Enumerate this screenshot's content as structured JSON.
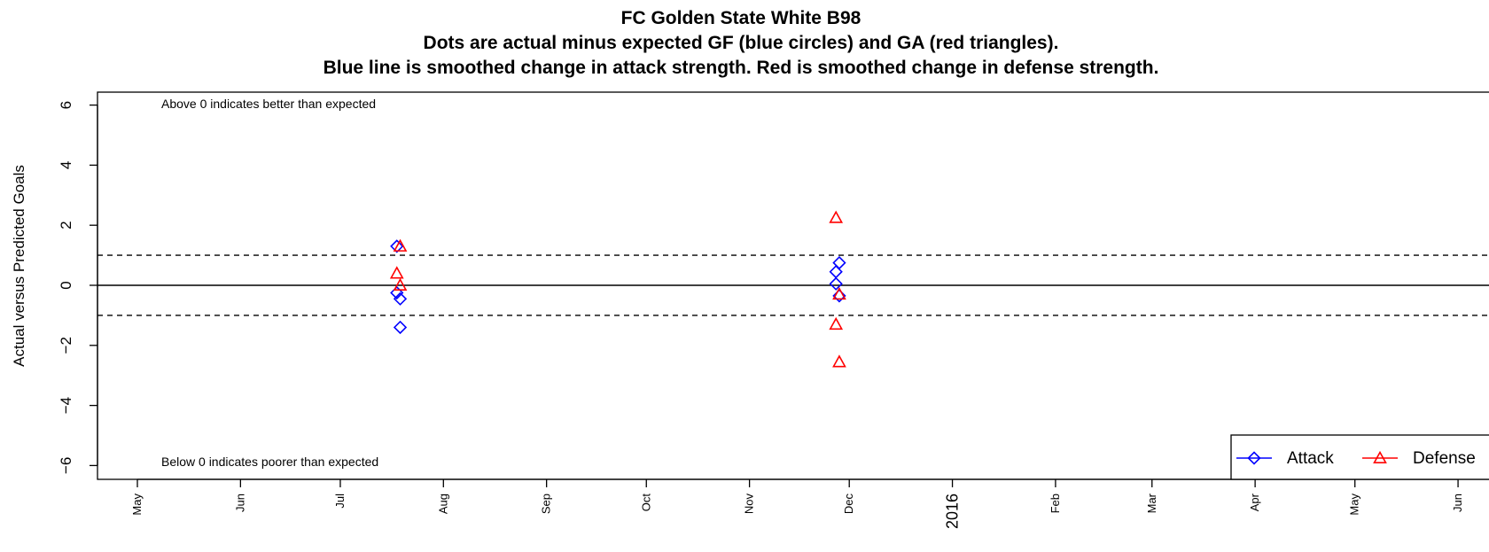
{
  "chart_data": {
    "type": "scatter",
    "title": [
      "FC Golden State White B98",
      "Dots are actual minus expected GF (blue circles) and GA (red triangles).",
      "Blue line is smoothed change in attack strength. Red is smoothed change in defense strength."
    ],
    "xlabel": "",
    "ylabel": "Actual versus Predicted Goals",
    "ylim": [
      -6.5,
      6.2
    ],
    "y_ticks": [
      -6,
      -4,
      -2,
      0,
      2,
      4,
      6
    ],
    "x_tick_labels": [
      {
        "date": "2015-05-01",
        "label": "May"
      },
      {
        "date": "2015-06-01",
        "label": "Jun"
      },
      {
        "date": "2015-07-01",
        "label": "Jul"
      },
      {
        "date": "2015-08-01",
        "label": "Aug"
      },
      {
        "date": "2015-09-01",
        "label": "Sep"
      },
      {
        "date": "2015-10-01",
        "label": "Oct"
      },
      {
        "date": "2015-11-01",
        "label": "Nov"
      },
      {
        "date": "2015-12-01",
        "label": "Dec"
      },
      {
        "date": "2016-01-01",
        "label": "2016"
      },
      {
        "date": "2016-02-01",
        "label": "Feb"
      },
      {
        "date": "2016-03-01",
        "label": "Mar"
      },
      {
        "date": "2016-04-01",
        "label": "Apr"
      },
      {
        "date": "2016-05-01",
        "label": "May"
      },
      {
        "date": "2016-06-01",
        "label": "Jun"
      }
    ],
    "reference_lines": [
      {
        "y": 0,
        "style": "solid"
      },
      {
        "y": 1,
        "style": "dashed"
      },
      {
        "y": -1,
        "style": "dashed"
      }
    ],
    "annotations": {
      "top": "Above 0 indicates better than expected",
      "bottom": "Below 0 indicates poorer than expected"
    },
    "legend": {
      "placement": "bottom-right",
      "entries": [
        {
          "name": "Attack",
          "marker": "diamond",
          "color": "#0000ff"
        },
        {
          "name": "Defense",
          "marker": "triangle",
          "color": "#ff0000"
        }
      ]
    },
    "series": [
      {
        "name": "Attack",
        "marker": "diamond",
        "color": "#0000ff",
        "points": [
          {
            "x": "2015-07-18",
            "y": 1.3
          },
          {
            "x": "2015-07-18",
            "y": -0.25
          },
          {
            "x": "2015-07-19",
            "y": -0.45
          },
          {
            "x": "2015-07-19",
            "y": -1.4
          },
          {
            "x": "2015-11-28",
            "y": 0.75
          },
          {
            "x": "2015-11-27",
            "y": 0.45
          },
          {
            "x": "2015-11-27",
            "y": 0.05
          },
          {
            "x": "2015-11-28",
            "y": -0.35
          }
        ]
      },
      {
        "name": "Defense",
        "marker": "triangle",
        "color": "#ff0000",
        "points": [
          {
            "x": "2015-07-19",
            "y": 1.3
          },
          {
            "x": "2015-07-18",
            "y": 0.4
          },
          {
            "x": "2015-07-19",
            "y": 0.0
          },
          {
            "x": "2015-11-27",
            "y": 2.25
          },
          {
            "x": "2015-11-28",
            "y": -0.3
          },
          {
            "x": "2015-11-27",
            "y": -1.3
          },
          {
            "x": "2015-11-28",
            "y": -2.55
          }
        ]
      }
    ]
  }
}
